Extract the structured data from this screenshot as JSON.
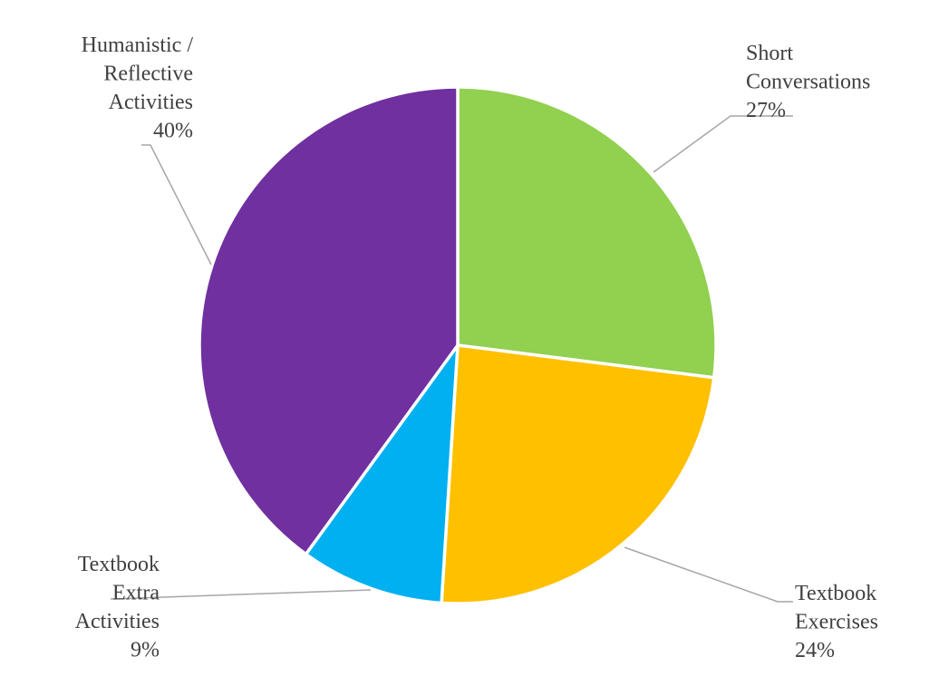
{
  "chart_data": {
    "type": "pie",
    "start_angle_deg": 0,
    "direction": "clockwise",
    "slices": [
      {
        "label_lines": [
          "Short",
          "Conversations"
        ],
        "value": 27,
        "value_label": "27%",
        "color": "#92d050"
      },
      {
        "label_lines": [
          "Textbook",
          "Exercises"
        ],
        "value": 24,
        "value_label": "24%",
        "color": "#ffc000"
      },
      {
        "label_lines": [
          "Textbook",
          "Extra",
          "Activities"
        ],
        "value": 9,
        "value_label": "9%",
        "color": "#00b0f0"
      },
      {
        "label_lines": [
          "Humanistic /",
          "Reflective",
          "Activities"
        ],
        "value": 40,
        "value_label": "40%",
        "color": "#7030a0"
      }
    ],
    "data_labels": "outside-with-leader-lines",
    "legend": "none"
  }
}
